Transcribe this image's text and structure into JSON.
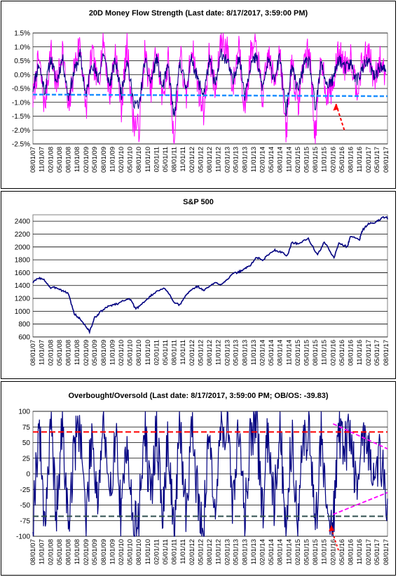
{
  "chart_data": [
    {
      "type": "line",
      "title": "20D Money Flow Strength (Last date: 8/17/2017, 3:59:00 PM)",
      "y_ticks": [
        "1.5%",
        "1.0%",
        "0.5%",
        "0.0%",
        "-0.5%",
        "-1.0%",
        "-1.5%",
        "-2.0%",
        "-2.5%"
      ],
      "ylim": [
        -2.5,
        1.5
      ],
      "x_ticks": [
        "08/01/07",
        "11/01/07",
        "02/01/08",
        "05/01/08",
        "08/01/08",
        "11/01/08",
        "02/01/09",
        "05/01/09",
        "08/01/09",
        "11/01/09",
        "02/01/10",
        "05/01/10",
        "08/01/10",
        "11/01/10",
        "02/01/11",
        "05/01/11",
        "08/01/11",
        "11/01/11",
        "02/01/12",
        "05/01/12",
        "08/01/12",
        "11/01/12",
        "02/01/13",
        "05/01/13",
        "08/01/13",
        "11/01/13",
        "02/01/14",
        "05/01/14",
        "08/01/14",
        "11/01/14",
        "02/01/15",
        "05/01/15",
        "08/01/15",
        "11/01/15",
        "02/01/16",
        "05/01/16",
        "08/01/16",
        "11/01/16",
        "02/01/17",
        "05/01/17",
        "08/01/17"
      ],
      "grid": true,
      "colors": {
        "daily": "#ff00ff",
        "smoothed": "#000080",
        "threshold": "#1e90ff",
        "arrow": "#ff0000"
      },
      "threshold": {
        "start": -0.72,
        "end": -0.78
      },
      "series": [
        {
          "key": "daily",
          "x": [
            "2007-08-01",
            "2007-10-01",
            "2007-12-01",
            "2008-02-01",
            "2008-04-01",
            "2008-06-01",
            "2008-08-01",
            "2008-10-01",
            "2008-12-01",
            "2009-02-01",
            "2009-04-01",
            "2009-06-01",
            "2009-08-01",
            "2009-10-01",
            "2009-12-01",
            "2010-02-01",
            "2010-04-01",
            "2010-06-01",
            "2010-08-01",
            "2010-10-01",
            "2010-12-01",
            "2011-02-01",
            "2011-04-01",
            "2011-06-01",
            "2011-08-01",
            "2011-10-01",
            "2011-12-01",
            "2012-02-01",
            "2012-04-01",
            "2012-06-01",
            "2012-08-01",
            "2012-10-01",
            "2012-12-01",
            "2013-02-01",
            "2013-04-01",
            "2013-06-01",
            "2013-08-01",
            "2013-10-01",
            "2013-12-01",
            "2014-02-01",
            "2014-04-01",
            "2014-06-01",
            "2014-08-01",
            "2014-10-01",
            "2014-12-01",
            "2015-02-01",
            "2015-04-01",
            "2015-06-01",
            "2015-08-01",
            "2015-10-01",
            "2015-12-01",
            "2016-02-01",
            "2016-04-01",
            "2016-06-01",
            "2016-08-01",
            "2016-10-01",
            "2016-12-01",
            "2017-02-01",
            "2017-04-01",
            "2017-06-01",
            "2017-08-01"
          ],
          "y": [
            -0.9,
            0.6,
            -1.2,
            0.9,
            -0.5,
            1.0,
            -1.4,
            0.3,
            1.2,
            -1.3,
            0.8,
            -0.4,
            1.3,
            -0.8,
            0.9,
            -1.2,
            1.1,
            -1.6,
            -2.0,
            0.8,
            -0.6,
            1.0,
            -0.9,
            0.5,
            -2.5,
            0.9,
            -1.0,
            1.1,
            -0.4,
            -1.3,
            0.8,
            -0.7,
            1.3,
            0.9,
            -0.5,
            1.2,
            -1.3,
            0.7,
            1.0,
            -0.9,
            0.8,
            -0.3,
            1.0,
            -2.3,
            0.6,
            -1.2,
            0.5,
            0.9,
            -2.3,
            0.7,
            -0.8,
            -0.4,
            0.9,
            0.3,
            0.7,
            -0.5,
            0.4,
            0.9,
            -0.3,
            0.5,
            0.0
          ]
        },
        {
          "key": "smoothed",
          "x": [
            "2007-08-01",
            "2007-10-01",
            "2007-12-01",
            "2008-02-01",
            "2008-04-01",
            "2008-06-01",
            "2008-08-01",
            "2008-10-01",
            "2008-12-01",
            "2009-02-01",
            "2009-04-01",
            "2009-06-01",
            "2009-08-01",
            "2009-10-01",
            "2009-12-01",
            "2010-02-01",
            "2010-04-01",
            "2010-06-01",
            "2010-08-01",
            "2010-10-01",
            "2010-12-01",
            "2011-02-01",
            "2011-04-01",
            "2011-06-01",
            "2011-08-01",
            "2011-10-01",
            "2011-12-01",
            "2012-02-01",
            "2012-04-01",
            "2012-06-01",
            "2012-08-01",
            "2012-10-01",
            "2012-12-01",
            "2013-02-01",
            "2013-04-01",
            "2013-06-01",
            "2013-08-01",
            "2013-10-01",
            "2013-12-01",
            "2014-02-01",
            "2014-04-01",
            "2014-06-01",
            "2014-08-01",
            "2014-10-01",
            "2014-12-01",
            "2015-02-01",
            "2015-04-01",
            "2015-06-01",
            "2015-08-01",
            "2015-10-01",
            "2015-12-01",
            "2016-02-01",
            "2016-04-01",
            "2016-06-01",
            "2016-08-01",
            "2016-10-01",
            "2016-12-01",
            "2017-02-01",
            "2017-04-01",
            "2017-06-01",
            "2017-08-01"
          ],
          "y": [
            -0.5,
            0.4,
            -0.6,
            0.6,
            -0.3,
            0.6,
            -0.8,
            0.1,
            0.7,
            -0.8,
            0.5,
            -0.2,
            0.8,
            -0.4,
            0.5,
            -0.7,
            0.6,
            -0.9,
            -1.2,
            0.5,
            -0.3,
            0.6,
            -0.5,
            0.3,
            -1.6,
            0.5,
            -0.5,
            0.6,
            -0.2,
            -0.7,
            0.5,
            -0.4,
            0.8,
            0.5,
            -0.3,
            0.7,
            -0.7,
            0.4,
            0.6,
            -0.5,
            0.5,
            -0.1,
            0.6,
            -1.4,
            0.3,
            -0.6,
            0.3,
            0.5,
            -1.3,
            0.4,
            -0.4,
            -0.2,
            0.6,
            0.2,
            0.4,
            -0.2,
            0.2,
            0.5,
            -0.1,
            0.3,
            0.1
          ]
        }
      ]
    },
    {
      "type": "line",
      "title": "S&P 500",
      "y_ticks": [
        "2400",
        "2200",
        "2000",
        "1800",
        "1600",
        "1400",
        "1200",
        "1000",
        "800",
        "600"
      ],
      "ylim": [
        600,
        2500
      ],
      "x_ticks": [
        "08/01/07",
        "11/01/07",
        "02/01/08",
        "05/01/08",
        "08/01/08",
        "11/01/08",
        "02/01/09",
        "05/01/09",
        "08/01/09",
        "11/01/09",
        "02/01/10",
        "05/01/10",
        "08/01/10",
        "11/01/10",
        "02/01/11",
        "05/01/11",
        "08/01/11",
        "11/01/11",
        "02/01/12",
        "05/01/12",
        "08/01/12",
        "11/01/12",
        "02/01/13",
        "05/01/13",
        "08/01/13",
        "11/01/13",
        "02/01/14",
        "05/01/14",
        "08/01/14",
        "11/01/14",
        "02/01/15",
        "05/01/15",
        "08/01/15",
        "11/01/15",
        "02/01/16",
        "05/01/16",
        "08/01/16",
        "11/01/16",
        "02/01/17",
        "05/01/17",
        "08/01/17"
      ],
      "grid": true,
      "colors": {
        "line": "#000080"
      },
      "series": [
        {
          "key": "spx",
          "x": [
            "2007-08-01",
            "2007-10-01",
            "2007-12-01",
            "2008-02-01",
            "2008-04-01",
            "2008-06-01",
            "2008-08-01",
            "2008-10-01",
            "2008-12-01",
            "2009-02-01",
            "2009-03-09",
            "2009-05-01",
            "2009-07-01",
            "2009-09-01",
            "2009-11-01",
            "2010-01-01",
            "2010-04-23",
            "2010-07-01",
            "2010-09-01",
            "2010-11-01",
            "2011-01-01",
            "2011-04-29",
            "2011-08-08",
            "2011-10-03",
            "2011-12-01",
            "2012-02-01",
            "2012-04-01",
            "2012-06-01",
            "2012-08-01",
            "2012-10-01",
            "2012-12-01",
            "2013-02-01",
            "2013-04-01",
            "2013-06-01",
            "2013-08-01",
            "2013-10-01",
            "2013-12-01",
            "2014-02-01",
            "2014-04-01",
            "2014-06-01",
            "2014-08-01",
            "2014-10-15",
            "2014-12-01",
            "2015-02-01",
            "2015-05-21",
            "2015-08-24",
            "2015-11-01",
            "2016-02-11",
            "2016-04-01",
            "2016-06-27",
            "2016-08-01",
            "2016-11-01",
            "2016-12-01",
            "2017-02-01",
            "2017-04-01",
            "2017-06-01",
            "2017-08-08",
            "2017-08-17"
          ],
          "y": [
            1450,
            1520,
            1480,
            1360,
            1370,
            1320,
            1280,
            960,
            880,
            760,
            680,
            900,
            990,
            1060,
            1100,
            1120,
            1210,
            1030,
            1120,
            1190,
            1280,
            1360,
            1120,
            1100,
            1250,
            1340,
            1390,
            1320,
            1390,
            1440,
            1420,
            1500,
            1580,
            1610,
            1660,
            1720,
            1840,
            1790,
            1880,
            1950,
            1930,
            1860,
            2070,
            2050,
            2130,
            1870,
            2080,
            1830,
            2060,
            2000,
            2170,
            2120,
            2260,
            2360,
            2370,
            2430,
            2480,
            2430
          ]
        }
      ]
    },
    {
      "type": "line",
      "title": "Overbought/Oversold (Last date: 8/17/2017, 3:59:00 PM; OB/OS: -39.83)",
      "y_ticks": [
        "100",
        "75",
        "50",
        "25",
        "0",
        "-25",
        "-50",
        "-75",
        "-100"
      ],
      "ylim": [
        -100,
        100
      ],
      "x_ticks": [
        "08/01/07",
        "11/01/07",
        "02/01/08",
        "05/01/08",
        "08/01/08",
        "11/01/08",
        "02/01/09",
        "05/01/09",
        "08/01/09",
        "11/01/09",
        "02/01/10",
        "05/01/10",
        "08/01/10",
        "11/01/10",
        "02/01/11",
        "05/01/11",
        "08/01/11",
        "11/01/11",
        "02/01/12",
        "05/01/12",
        "08/01/12",
        "11/01/12",
        "02/01/13",
        "05/01/13",
        "08/01/13",
        "11/01/13",
        "02/01/14",
        "05/01/14",
        "08/01/14",
        "11/01/14",
        "02/01/15",
        "05/01/15",
        "08/01/15",
        "11/01/15",
        "02/01/16",
        "05/01/16",
        "08/01/16",
        "11/01/16",
        "02/01/17",
        "05/01/17",
        "08/01/17"
      ],
      "grid": true,
      "colors": {
        "line": "#000080",
        "overbought": "#ff0000",
        "oversold": "#2f4f4f",
        "trend": "#ff00ff",
        "arrow": "#ff0000"
      },
      "overbought_level": 67,
      "oversold_level": -68,
      "last_value": -39.83,
      "series": [
        {
          "key": "obos",
          "x": [
            "2007-08-01",
            "2007-10-01",
            "2007-12-01",
            "2008-02-01",
            "2008-04-01",
            "2008-06-01",
            "2008-08-01",
            "2008-10-01",
            "2008-12-01",
            "2009-02-01",
            "2009-04-01",
            "2009-06-01",
            "2009-08-01",
            "2009-10-01",
            "2009-12-01",
            "2010-02-01",
            "2010-04-01",
            "2010-06-01",
            "2010-08-01",
            "2010-10-01",
            "2010-12-01",
            "2011-02-01",
            "2011-04-01",
            "2011-06-01",
            "2011-08-01",
            "2011-10-01",
            "2011-12-01",
            "2012-02-01",
            "2012-04-01",
            "2012-06-01",
            "2012-08-01",
            "2012-10-01",
            "2012-12-01",
            "2013-02-01",
            "2013-04-01",
            "2013-06-01",
            "2013-08-01",
            "2013-10-01",
            "2013-12-01",
            "2014-02-01",
            "2014-04-01",
            "2014-06-01",
            "2014-08-01",
            "2014-10-01",
            "2014-12-01",
            "2015-02-01",
            "2015-04-01",
            "2015-06-01",
            "2015-08-01",
            "2015-10-01",
            "2015-12-01",
            "2016-02-01",
            "2016-04-01",
            "2016-06-01",
            "2016-08-01",
            "2016-10-01",
            "2016-12-01",
            "2017-02-01",
            "2017-04-01",
            "2017-06-01",
            "2017-08-17"
          ],
          "y": [
            -70,
            80,
            -75,
            70,
            -60,
            75,
            -85,
            40,
            85,
            -80,
            70,
            -40,
            88,
            -60,
            75,
            -80,
            72,
            -90,
            -70,
            78,
            -50,
            80,
            -75,
            60,
            -98,
            75,
            -60,
            82,
            -40,
            -85,
            70,
            -60,
            80,
            75,
            -50,
            78,
            -80,
            70,
            76,
            -60,
            72,
            -40,
            75,
            -85,
            60,
            -70,
            55,
            70,
            -95,
            65,
            -60,
            -80,
            75,
            40,
            72,
            -30,
            60,
            50,
            -20,
            35,
            -39.83
          ]
        }
      ],
      "trend_upper": {
        "x": [
          "2016-02-01",
          "2017-08-17"
        ],
        "y": [
          80,
          40
        ]
      },
      "trend_lower": {
        "x": [
          "2016-02-01",
          "2017-08-17"
        ],
        "y": [
          -65,
          -30
        ]
      }
    }
  ]
}
